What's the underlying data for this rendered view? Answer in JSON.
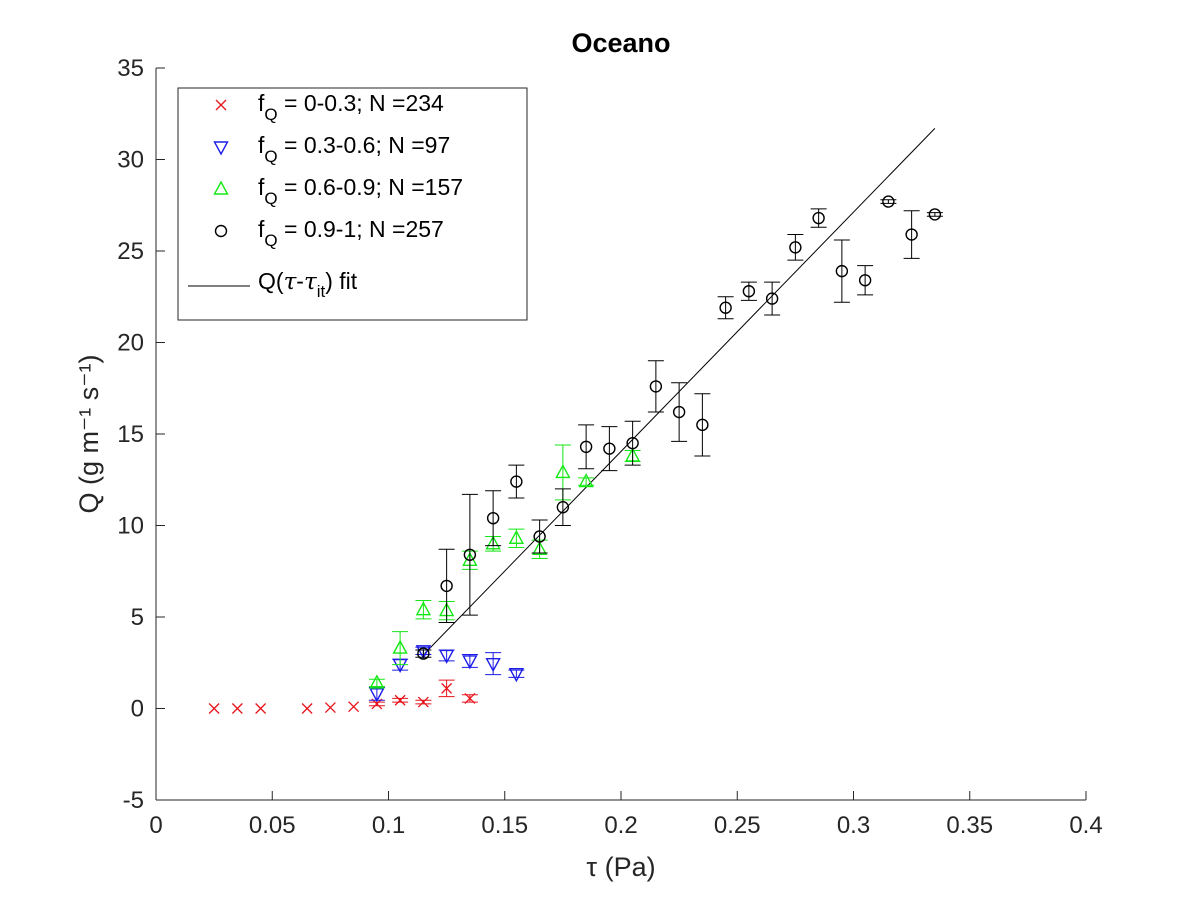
{
  "chart_data": {
    "type": "scatter",
    "title": "Oceano",
    "xlabel": "τ (Pa)",
    "ylabel": "Q (g m⁻¹ s⁻¹)",
    "xlim": [
      0,
      0.4
    ],
    "ylim": [
      -5,
      35
    ],
    "grid": false,
    "legend_position": "top-left",
    "x_ticks": [
      "0",
      "0.05",
      "0.1",
      "0.15",
      "0.2",
      "0.25",
      "0.3",
      "0.35",
      "0.4"
    ],
    "y_ticks": [
      "-5",
      "0",
      "5",
      "10",
      "15",
      "20",
      "25",
      "30",
      "35"
    ],
    "series": [
      {
        "name": "fQ = 0-0.3; N =234",
        "color": "#e8141c",
        "marker": "x",
        "points": [
          {
            "x": 0.025,
            "y": 0.0,
            "err": 0.0
          },
          {
            "x": 0.035,
            "y": 0.0,
            "err": 0.0
          },
          {
            "x": 0.045,
            "y": 0.0,
            "err": 0.0
          },
          {
            "x": 0.065,
            "y": 0.0,
            "err": 0.0
          },
          {
            "x": 0.075,
            "y": 0.05,
            "err": 0.0
          },
          {
            "x": 0.085,
            "y": 0.1,
            "err": 0.0
          },
          {
            "x": 0.095,
            "y": 0.25,
            "err": 0.1
          },
          {
            "x": 0.105,
            "y": 0.45,
            "err": 0.1
          },
          {
            "x": 0.115,
            "y": 0.35,
            "err": 0.1
          },
          {
            "x": 0.125,
            "y": 1.1,
            "err": 0.45
          },
          {
            "x": 0.135,
            "y": 0.55,
            "err": 0.2
          }
        ]
      },
      {
        "name": "fQ = 0.3-0.6; N =97",
        "color": "#1c1ce8",
        "marker": "triangle-down",
        "points": [
          {
            "x": 0.095,
            "y": 0.8,
            "err": 0.35
          },
          {
            "x": 0.105,
            "y": 2.4,
            "err": 0.3
          },
          {
            "x": 0.115,
            "y": 3.15,
            "err": 0.2
          },
          {
            "x": 0.125,
            "y": 2.9,
            "err": 0.3
          },
          {
            "x": 0.135,
            "y": 2.6,
            "err": 0.35
          },
          {
            "x": 0.145,
            "y": 2.45,
            "err": 0.6
          },
          {
            "x": 0.155,
            "y": 1.9,
            "err": 0.2
          }
        ]
      },
      {
        "name": "fQ = 0.6-0.9; N =157",
        "color": "#14e814",
        "marker": "triangle-up",
        "points": [
          {
            "x": 0.095,
            "y": 1.4,
            "err": 0.2
          },
          {
            "x": 0.105,
            "y": 3.3,
            "err": 0.9
          },
          {
            "x": 0.115,
            "y": 5.4,
            "err": 0.5
          },
          {
            "x": 0.125,
            "y": 5.35,
            "err": 0.5
          },
          {
            "x": 0.135,
            "y": 8.1,
            "err": 0.5
          },
          {
            "x": 0.145,
            "y": 9.0,
            "err": 0.4
          },
          {
            "x": 0.155,
            "y": 9.3,
            "err": 0.5
          },
          {
            "x": 0.165,
            "y": 8.7,
            "err": 0.5
          },
          {
            "x": 0.175,
            "y": 12.9,
            "err": 1.5
          },
          {
            "x": 0.185,
            "y": 12.4,
            "err": 0.2
          },
          {
            "x": 0.205,
            "y": 13.8,
            "err": 0.3
          }
        ]
      },
      {
        "name": "fQ = 0.9-1; N =257",
        "color": "#000000",
        "marker": "circle",
        "points": [
          {
            "x": 0.115,
            "y": 3.0,
            "err": 0.2
          },
          {
            "x": 0.125,
            "y": 6.7,
            "err": 2.0
          },
          {
            "x": 0.135,
            "y": 8.4,
            "err": 3.3
          },
          {
            "x": 0.145,
            "y": 10.4,
            "err": 1.5
          },
          {
            "x": 0.155,
            "y": 12.4,
            "err": 0.9
          },
          {
            "x": 0.165,
            "y": 9.4,
            "err": 0.9
          },
          {
            "x": 0.175,
            "y": 11.0,
            "err": 1.0
          },
          {
            "x": 0.185,
            "y": 14.3,
            "err": 1.2
          },
          {
            "x": 0.195,
            "y": 14.2,
            "err": 1.2
          },
          {
            "x": 0.205,
            "y": 14.5,
            "err": 1.2
          },
          {
            "x": 0.215,
            "y": 17.6,
            "err": 1.4
          },
          {
            "x": 0.225,
            "y": 16.2,
            "err": 1.6
          },
          {
            "x": 0.235,
            "y": 15.5,
            "err": 1.7
          },
          {
            "x": 0.245,
            "y": 21.9,
            "err": 0.6
          },
          {
            "x": 0.255,
            "y": 22.8,
            "err": 0.5
          },
          {
            "x": 0.265,
            "y": 22.4,
            "err": 0.9
          },
          {
            "x": 0.275,
            "y": 25.2,
            "err": 0.7
          },
          {
            "x": 0.285,
            "y": 26.8,
            "err": 0.5
          },
          {
            "x": 0.295,
            "y": 23.9,
            "err": 1.7
          },
          {
            "x": 0.305,
            "y": 23.4,
            "err": 0.8
          },
          {
            "x": 0.315,
            "y": 27.7,
            "err": 0.1
          },
          {
            "x": 0.325,
            "y": 25.9,
            "err": 1.3
          },
          {
            "x": 0.335,
            "y": 27.0,
            "err": 0.1
          }
        ]
      },
      {
        "name": "Q(τ-τit) fit",
        "color": "#000000",
        "marker": "line",
        "points": [
          {
            "x": 0.1155,
            "y": 3.0
          },
          {
            "x": 0.335,
            "y": 31.7
          }
        ]
      }
    ]
  }
}
